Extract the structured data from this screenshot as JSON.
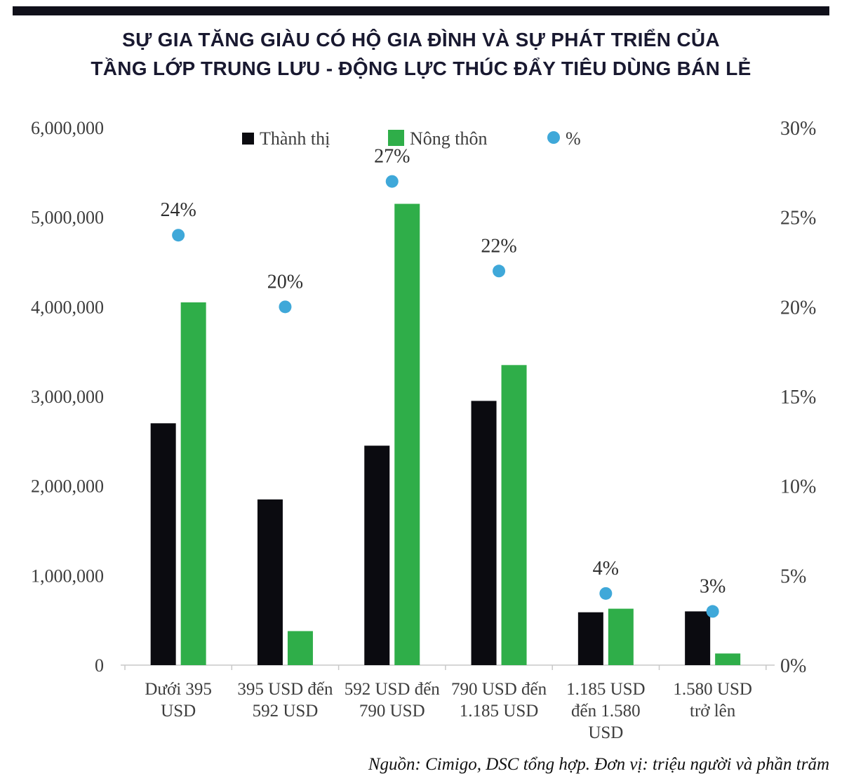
{
  "page": {
    "title_line1": "SỰ GIA TĂNG GIÀU CÓ HỘ GIA ĐÌNH VÀ SỰ PHÁT TRIỂN CỦA",
    "title_line2": "TẦNG LỚP TRUNG LƯU - ĐỘNG LỰC THÚC ĐẨY TIÊU DÙNG BÁN LẺ",
    "source_note": "Nguồn: Cimigo, DSC tổng hợp. Đơn vị: triệu người và phần trăm"
  },
  "colors": {
    "title_text": "#191930",
    "top_rule": "#10101a",
    "urban_bar": "#0b0b10",
    "rural_bar": "#2fae49",
    "percent_dot": "#3fa8d9",
    "axis_text": "#3d3d3d",
    "axis_line": "#c8c8c8"
  },
  "chart_data": {
    "type": "bar",
    "title": "SỰ GIA TĂNG GIÀU CÓ HỘ GIA ĐÌNH VÀ SỰ PHÁT TRIỂN CỦA TẦNG LỚP TRUNG LƯU - ĐỘNG LỰC THÚC ĐẨY TIÊU DÙNG BÁN LẺ",
    "categories": [
      "Dưới 395 USD",
      "395 USD đến 592 USD",
      "592 USD đến 790 USD",
      "790 USD đến 1.185 USD",
      "1.185 USD đến 1.580 USD",
      "1.580 USD trở lên"
    ],
    "category_label_lines": [
      [
        "Dưới 395",
        "USD"
      ],
      [
        "395 USD đến",
        "592 USD"
      ],
      [
        "592 USD đến",
        "790 USD"
      ],
      [
        "790 USD đến",
        "1.185 USD"
      ],
      [
        "1.185 USD",
        "đến 1.580",
        "USD"
      ],
      [
        "1.580 USD",
        "trở lên"
      ]
    ],
    "series": [
      {
        "name": "Thành thị",
        "kind": "bar",
        "axis": "left",
        "color": "#0b0b10",
        "values": [
          2700000,
          1850000,
          2450000,
          2950000,
          590000,
          600000
        ]
      },
      {
        "name": "Nông thôn",
        "kind": "bar",
        "axis": "left",
        "color": "#2fae49",
        "values": [
          4050000,
          380000,
          5150000,
          3350000,
          630000,
          130000
        ]
      },
      {
        "name": "%",
        "kind": "point",
        "axis": "right",
        "color": "#3fa8d9",
        "values": [
          24,
          20,
          27,
          22,
          4,
          3
        ],
        "point_labels": [
          "24%",
          "20%",
          "27%",
          "22%",
          "4%",
          "3%"
        ]
      }
    ],
    "left_axis": {
      "min": 0,
      "max": 6000000,
      "tick_values": [
        0,
        1000000,
        2000000,
        3000000,
        4000000,
        5000000,
        6000000
      ],
      "tick_labels": [
        "0",
        "1,000,000",
        "2,000,000",
        "3,000,000",
        "4,000,000",
        "5,000,000",
        "6,000,000"
      ]
    },
    "right_axis": {
      "min": 0,
      "max": 30,
      "tick_values": [
        0,
        5,
        10,
        15,
        20,
        25,
        30
      ],
      "tick_labels": [
        "0%",
        "5%",
        "10%",
        "15%",
        "20%",
        "25%",
        "30%"
      ]
    },
    "legend": {
      "position": "top-center",
      "entries": [
        "Thành thị",
        "Nông thôn",
        "%"
      ]
    },
    "grid": false,
    "xlabel": "",
    "ylabel_left": "",
    "ylabel_right": ""
  }
}
